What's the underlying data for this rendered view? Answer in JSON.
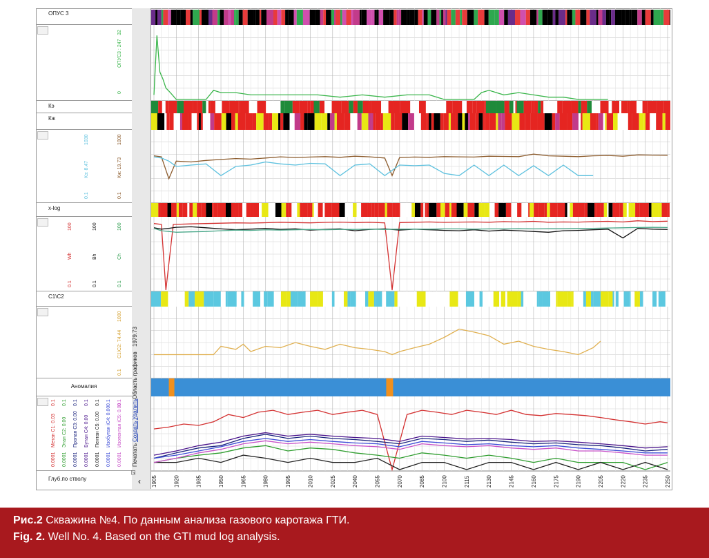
{
  "tracks": {
    "opus_label": "ОПУС 3",
    "opus_axis": {
      "name": "ОПУС3 : 247",
      "max": "32",
      "min": "0"
    },
    "ke_label": "Кэ",
    "kzh_label": "Кж",
    "ke_axis": {
      "name": "Кэ: 8.47",
      "max": "1030",
      "min": "0.1"
    },
    "kzh_axis": {
      "name": "Кж: 19.73",
      "max": "1000",
      "min": "0.1"
    },
    "xlog_label": "x-log",
    "wh_axis": {
      "name": "Wh",
      "max": "100",
      "min": "0.1"
    },
    "bh_axis": {
      "name": "Bh",
      "max": "100",
      "min": "0.1"
    },
    "ch_axis": {
      "name": "Ch",
      "max": "100",
      "min": "0.1"
    },
    "c1c2_label": "C1\\C2",
    "c1c2_axis": {
      "name": "C1\\C2: 74.44",
      "max": "1000",
      "min": "0.1"
    },
    "anomaly_label": "Аномалия",
    "gas_axes": [
      {
        "name": "Метан С1: 0.03",
        "min": "0.0001",
        "max": "0.1",
        "color": "#d32f2f"
      },
      {
        "name": "Этан С2: 0.00",
        "min": "0.0001",
        "max": "0.1",
        "color": "#2e9d2e"
      },
      {
        "name": "Пропан С3: 0.00",
        "min": "0.0001",
        "max": "0.1",
        "color": "#1a237e"
      },
      {
        "name": "Бутан С4: 0.00",
        "min": "0.0001",
        "max": "0.1",
        "color": "#4a148c"
      },
      {
        "name": "Пентан С5: 0.00",
        "min": "0.0001",
        "max": "0.1",
        "color": "#222222"
      },
      {
        "name": "Изобутан iC4: 0.00",
        "min": "0.0001",
        "max": "0.1",
        "color": "#3b4bd6"
      },
      {
        "name": "Изопентан iC5: 0.00",
        "min": "0.0001",
        "max": "0.1",
        "color": "#c850c8"
      }
    ],
    "depth_label": "Глуб.по стволу"
  },
  "sidebar": {
    "print_check": "☑",
    "print_label": "Печатать",
    "create_link": "Создать",
    "delete_link": "Удалить",
    "area_label": "Область графиков",
    "depth_value": "1979.73",
    "arrow": "‹"
  },
  "chart_data": {
    "type": "line",
    "xlabel": "Глуб.по стволу",
    "depth_ticks": [
      "1905",
      "1920",
      "1935",
      "1950",
      "1965",
      "1980",
      "1995",
      "2010",
      "2025",
      "2040",
      "2055",
      "2070",
      "2085",
      "2100",
      "2115",
      "2130",
      "2145",
      "2160",
      "2175",
      "2190",
      "2205",
      "2220",
      "2235",
      "2250"
    ],
    "xlim": [
      1905,
      2250
    ],
    "series": [
      {
        "name": "ОПУС3",
        "track": "opus",
        "color": "#39b54a",
        "x": [
          1905,
          1907,
          1909,
          1911,
          1913,
          1916,
          1920,
          1930,
          1940,
          1945,
          1950,
          1960,
          1970,
          1985,
          2000,
          2015,
          2030,
          2045,
          2060,
          2075,
          2090,
          2100,
          2110,
          2120,
          2125,
          2130,
          2140,
          2150,
          2160,
          2170,
          2180,
          2190,
          2200,
          2210
        ],
        "y": [
          2,
          28,
          12,
          9,
          5,
          3,
          0,
          0,
          0,
          4,
          3,
          3,
          2,
          2,
          2,
          2,
          1,
          2,
          1,
          2,
          2,
          0,
          0,
          0,
          3,
          4,
          2,
          3,
          2,
          1,
          1,
          0,
          0,
          0
        ]
      },
      {
        "name": "Кж",
        "track": "resist",
        "color": "#8b5a2b",
        "x": [
          1905,
          1910,
          1915,
          1920,
          1930,
          1940,
          1950,
          1960,
          1970,
          1980,
          1990,
          2000,
          2010,
          2020,
          2030,
          2040,
          2050,
          2060,
          2065,
          2070,
          2080,
          2090,
          2100,
          2110,
          2120,
          2130,
          2140,
          2150,
          2160,
          2170,
          2180,
          2190,
          2200,
          2210,
          2220,
          2230,
          2240,
          2250
        ],
        "y": [
          40,
          35,
          2,
          20,
          18,
          22,
          25,
          28,
          26,
          30,
          35,
          32,
          34,
          36,
          33,
          38,
          35,
          30,
          3,
          32,
          34,
          33,
          36,
          35,
          34,
          38,
          37,
          36,
          50,
          40,
          38,
          36,
          40,
          42,
          38,
          45,
          44,
          43
        ]
      },
      {
        "name": "Кэ",
        "track": "resist",
        "color": "#5bc0de",
        "x": [
          1905,
          1910,
          1915,
          1920,
          1930,
          1940,
          1950,
          1960,
          1970,
          1980,
          1990,
          2000,
          2010,
          2020,
          2030,
          2040,
          2050,
          2060,
          2070,
          2080,
          2090,
          2100,
          2110,
          2120,
          2130,
          2140,
          2150,
          2160,
          2170,
          2180,
          2190,
          2200
        ],
        "y": [
          35,
          30,
          20,
          10,
          12,
          14,
          3,
          10,
          12,
          18,
          14,
          12,
          15,
          14,
          3,
          12,
          14,
          3,
          12,
          11,
          12,
          4,
          3,
          12,
          3,
          12,
          3,
          11,
          3,
          12,
          3,
          3
        ]
      },
      {
        "name": "Wh",
        "track": "xlog",
        "color": "#d32f2f",
        "x": [
          1905,
          1910,
          1913,
          1918,
          1930,
          1940,
          1950,
          1960,
          1970,
          1980,
          1990,
          2000,
          2010,
          2020,
          2030,
          2040,
          2050,
          2060,
          2065,
          2070,
          2080,
          2090,
          2100,
          2110,
          2120,
          2130,
          2140,
          2150,
          2160,
          2170,
          2180,
          2190,
          2200,
          2210,
          2220,
          2230,
          2240,
          2250
        ],
        "y": [
          60,
          55,
          0.1,
          55,
          58,
          60,
          62,
          64,
          63,
          65,
          68,
          66,
          64,
          67,
          69,
          66,
          68,
          64,
          0.1,
          66,
          68,
          70,
          67,
          69,
          70,
          68,
          72,
          70,
          74,
          68,
          70,
          69,
          72,
          74,
          70,
          78,
          72,
          75
        ]
      },
      {
        "name": "Bh",
        "track": "xlog",
        "color": "#111111",
        "x": [
          1905,
          1910,
          1915,
          1920,
          1930,
          1940,
          1950,
          1960,
          1970,
          1980,
          1990,
          2000,
          2010,
          2020,
          2030,
          2040,
          2050,
          2060,
          2070,
          2080,
          2090,
          2100,
          2110,
          2120,
          2130,
          2140,
          2150,
          2160,
          2170,
          2180,
          2190,
          2200,
          2210,
          2220,
          2230,
          2240,
          2250
        ],
        "y": [
          40,
          35,
          38,
          42,
          44,
          40,
          36,
          33,
          35,
          38,
          34,
          36,
          32,
          34,
          36,
          30,
          34,
          36,
          32,
          35,
          33,
          31,
          30,
          33,
          29,
          32,
          30,
          28,
          26,
          30,
          31,
          33,
          35,
          15,
          38,
          35,
          34
        ]
      },
      {
        "name": "Ch",
        "track": "xlog",
        "color": "#4aa88a",
        "x": [
          1905,
          1910,
          1915,
          1920,
          1930,
          1940,
          1950,
          1960,
          1970,
          1980,
          1990,
          2000,
          2010,
          2020,
          2030,
          2040,
          2050,
          2060,
          2070,
          2080,
          2090,
          2100,
          2110,
          2120,
          2130,
          2140,
          2150,
          2160,
          2170,
          2180,
          2190,
          2200,
          2210,
          2220,
          2230,
          2240,
          2250
        ],
        "y": [
          38,
          30,
          28,
          26,
          27,
          28,
          30,
          32,
          31,
          33,
          32,
          33,
          34,
          33,
          34,
          34,
          35,
          34,
          35,
          35,
          35,
          36,
          36,
          35,
          36,
          36,
          37,
          36,
          37,
          37,
          38,
          38,
          39,
          40,
          41,
          42,
          41
        ]
      },
      {
        "name": "C1\\C2",
        "track": "c1c2",
        "color": "#e0b050",
        "x": [
          1905,
          1945,
          1950,
          1960,
          1965,
          1970,
          1980,
          1990,
          2000,
          2010,
          2020,
          2030,
          2040,
          2050,
          2060,
          2065,
          2070,
          2080,
          2090,
          2100,
          2110,
          2120,
          2130,
          2140,
          2150,
          2160,
          2170,
          2180,
          2190,
          2200,
          2205
        ],
        "y": [
          2,
          2,
          6,
          4,
          8,
          3,
          6,
          5,
          10,
          6,
          4,
          8,
          5,
          4,
          3,
          2,
          3,
          5,
          8,
          20,
          60,
          40,
          25,
          8,
          12,
          6,
          4,
          3,
          2,
          5,
          12
        ]
      },
      {
        "name": "Метан С1",
        "track": "gas",
        "color": "#d32f2f",
        "x": [
          1905,
          1915,
          1925,
          1935,
          1945,
          1955,
          1965,
          1975,
          1985,
          1995,
          2005,
          2015,
          2025,
          2035,
          2045,
          2055,
          2065,
          2075,
          2085,
          2095,
          2105,
          2115,
          2125,
          2135,
          2145,
          2155,
          2165,
          2175,
          2185,
          2195,
          2205,
          2215,
          2225,
          2235,
          2245,
          2250
        ],
        "y": [
          0.005,
          0.006,
          0.008,
          0.007,
          0.01,
          0.02,
          0.015,
          0.025,
          0.03,
          0.02,
          0.025,
          0.03,
          0.02,
          0.025,
          0.03,
          0.02,
          0.0001,
          0.02,
          0.03,
          0.025,
          0.02,
          0.03,
          0.025,
          0.02,
          0.03,
          0.02,
          0.018,
          0.022,
          0.02,
          0.018,
          0.015,
          0.012,
          0.01,
          0.008,
          0.01,
          0.009
        ]
      },
      {
        "name": "Этан С2",
        "track": "gas",
        "color": "#2e9d2e",
        "x": [
          1905,
          1920,
          1935,
          1950,
          1965,
          1980,
          1995,
          2010,
          2025,
          2040,
          2055,
          2070,
          2085,
          2100,
          2115,
          2130,
          2145,
          2160,
          2175,
          2190,
          2205,
          2220,
          2235,
          2250
        ],
        "y": [
          0.0002,
          0.0003,
          0.0004,
          0.0005,
          0.0008,
          0.001,
          0.0006,
          0.0008,
          0.0007,
          0.0005,
          0.0004,
          0.0003,
          0.0005,
          0.0004,
          0.0003,
          0.0004,
          0.0003,
          0.0002,
          0.0003,
          0.0002,
          0.0002,
          0.0002,
          0.0001,
          0.0002
        ]
      },
      {
        "name": "Пропан С3",
        "track": "gas",
        "color": "#1a237e",
        "x": [
          1905,
          1920,
          1935,
          1950,
          1965,
          1980,
          1995,
          2010,
          2025,
          2040,
          2055,
          2070,
          2085,
          2100,
          2115,
          2130,
          2145,
          2160,
          2175,
          2190,
          2205,
          2220,
          2235,
          2250
        ],
        "y": [
          0.0003,
          0.0005,
          0.0008,
          0.001,
          0.002,
          0.003,
          0.002,
          0.0025,
          0.002,
          0.0018,
          0.0015,
          0.0012,
          0.002,
          0.0018,
          0.0015,
          0.0017,
          0.0014,
          0.0012,
          0.0013,
          0.0011,
          0.001,
          0.0008,
          0.0006,
          0.0007
        ]
      },
      {
        "name": "Бутан С4",
        "track": "gas",
        "color": "#4a148c",
        "x": [
          1905,
          1920,
          1935,
          1950,
          1965,
          1980,
          1995,
          2010,
          2025,
          2040,
          2055,
          2070,
          2085,
          2100,
          2115,
          2130,
          2145,
          2160,
          2175,
          2190,
          2205,
          2220,
          2235,
          2250
        ],
        "y": [
          0.0004,
          0.0006,
          0.001,
          0.0014,
          0.0025,
          0.0035,
          0.0025,
          0.003,
          0.0025,
          0.0022,
          0.002,
          0.0015,
          0.0025,
          0.0022,
          0.0019,
          0.002,
          0.0018,
          0.0015,
          0.0016,
          0.0014,
          0.0012,
          0.001,
          0.0008,
          0.0009
        ]
      },
      {
        "name": "Пентан С5",
        "track": "gas",
        "color": "#222222",
        "x": [
          1905,
          1920,
          1935,
          1950,
          1965,
          1980,
          1995,
          2010,
          2025,
          2040,
          2055,
          2070,
          2085,
          2100,
          2115,
          2130,
          2145,
          2160,
          2175,
          2190,
          2205,
          2220,
          2235,
          2250
        ],
        "y": [
          0.0002,
          0.0002,
          0.0003,
          0.0002,
          0.0004,
          0.0003,
          0.0002,
          0.0003,
          0.0002,
          0.0002,
          0.0003,
          0.0001,
          0.0002,
          0.0002,
          0.0001,
          0.0002,
          0.0002,
          0.0001,
          0.0002,
          0.0001,
          0.0002,
          0.0001,
          0.0002,
          0.0001
        ]
      },
      {
        "name": "Изобутан iC4",
        "track": "gas",
        "color": "#3b4bd6",
        "x": [
          1905,
          1920,
          1935,
          1950,
          1965,
          1980,
          1995,
          2010,
          2025,
          2040,
          2055,
          2070,
          2085,
          2100,
          2115,
          2130,
          2145,
          2160,
          2175,
          2190,
          2205,
          2220,
          2235,
          2250
        ],
        "y": [
          0.0003,
          0.0004,
          0.0006,
          0.0009,
          0.0015,
          0.002,
          0.0015,
          0.0018,
          0.0015,
          0.0013,
          0.0012,
          0.0009,
          0.0015,
          0.0013,
          0.0011,
          0.0012,
          0.001,
          0.0009,
          0.001,
          0.0008,
          0.0007,
          0.0006,
          0.0005,
          0.0005
        ]
      },
      {
        "name": "Изопентан iC5",
        "track": "gas",
        "color": "#c850c8",
        "x": [
          1905,
          1920,
          1935,
          1950,
          1965,
          1980,
          1995,
          2010,
          2025,
          2040,
          2055,
          2070,
          2085,
          2100,
          2115,
          2130,
          2145,
          2160,
          2175,
          2190,
          2205,
          2220,
          2235,
          2250
        ],
        "y": [
          0.0002,
          0.0003,
          0.0005,
          0.0007,
          0.0012,
          0.0016,
          0.0012,
          0.0014,
          0.0012,
          0.001,
          0.0009,
          0.0007,
          0.0012,
          0.001,
          0.0009,
          0.001,
          0.0008,
          0.0007,
          0.0008,
          0.0006,
          0.0006,
          0.0005,
          0.0004,
          0.0004
        ]
      }
    ]
  },
  "caption": {
    "ru_bold": "Рис.2",
    "ru_text": " Скважина №4. По данным анализа газового каротажа ГТИ.",
    "en_bold": "Fig. 2.",
    "en_text": " Well No. 4. Based on the GTI mud log analysis."
  }
}
